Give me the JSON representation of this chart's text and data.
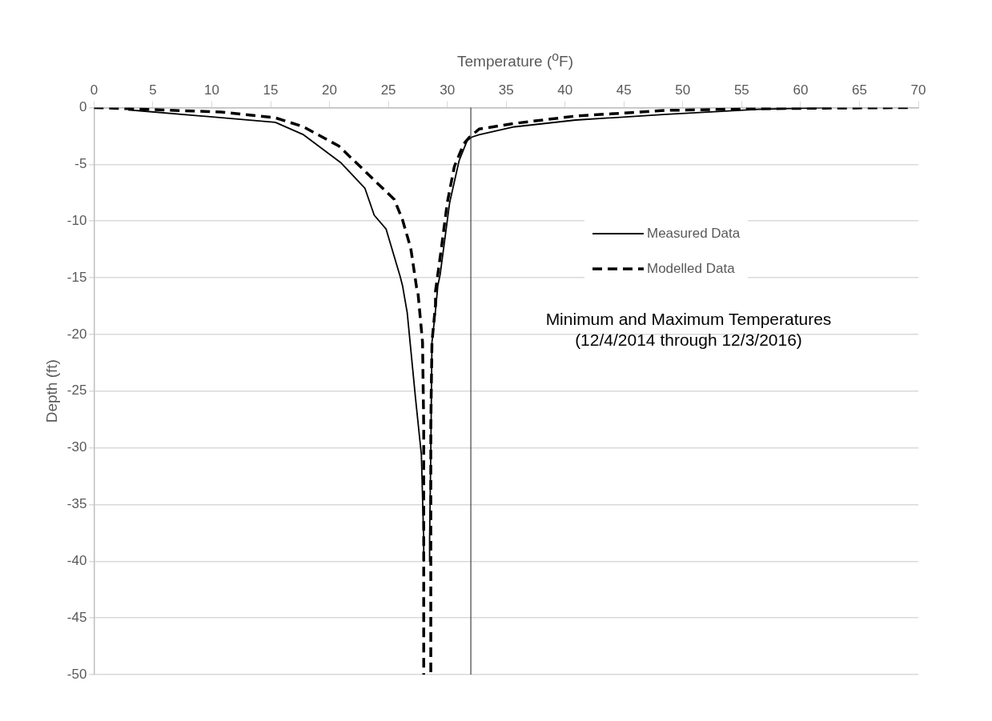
{
  "chart_data": {
    "type": "line",
    "xlabel": "Temperature ($^{o}$F)",
    "ylabel": "Depth (ft)",
    "xlim": [
      0,
      70
    ],
    "xticks": [
      0,
      5,
      10,
      15,
      20,
      25,
      30,
      35,
      40,
      45,
      50,
      55,
      60,
      65,
      70
    ],
    "ylim": [
      -50,
      0
    ],
    "yticks": [
      -50,
      -45,
      -40,
      -35,
      -30,
      -25,
      -20,
      -15,
      -10,
      -5,
      0
    ],
    "grid": "y",
    "legend": "right",
    "marker": "none",
    "ref_lines": [
      {
        "axis": "x",
        "value": 32,
        "color": "#404040"
      }
    ],
    "annotations": [
      "Minimum and Maximum Temperatures\n(12/4/2014 through 12/3/2016)"
    ],
    "series": [
      {
        "name": "Measured Data",
        "color": "#000000",
        "line_style": "solid",
        "x": [
          2.9,
          15.4,
          17.8,
          21.0,
          23.0,
          23.8,
          24.8,
          26.0,
          26.2,
          26.6,
          27.3,
          27.8,
          28.0,
          28.0
        ],
        "values": [
          -0.2,
          -1.3,
          -2.4,
          -4.9,
          -7.1,
          -9.5,
          -10.7,
          -14.9,
          -15.7,
          -18.1,
          -25.6,
          -30.6,
          -38.1,
          -40
        ]
      },
      {
        "color": "#000000",
        "line_style": "solid",
        "x": [
          62.6,
          56.4,
          48.6,
          40.9,
          35.7,
          32.7,
          32.1,
          31.7,
          31.5,
          31.0,
          30.2,
          29.4,
          29.2,
          29.0,
          28.7,
          28.6,
          28.5,
          28.5
        ],
        "values": [
          0,
          -0.15,
          -0.6,
          -1.1,
          -1.7,
          -2.4,
          -2.6,
          -2.9,
          -3.4,
          -4.7,
          -8.4,
          -14.7,
          -15.7,
          -17.9,
          -20.7,
          -30.6,
          -38,
          -40
        ]
      },
      {
        "name": "Modelled Data",
        "color": "#000000",
        "line_style": "dashed",
        "x": [
          0,
          2.9,
          10.8,
          15.4,
          17.8,
          20.8,
          23.1,
          25.5,
          26.2,
          26.9,
          27.4,
          27.5,
          27.9,
          28.0,
          28.0
        ],
        "values": [
          0,
          -0.1,
          -0.4,
          -0.9,
          -1.7,
          -3.4,
          -5.7,
          -8.1,
          -9.9,
          -12.4,
          -15.9,
          -16.2,
          -20.7,
          -28.1,
          -50
        ]
      },
      {
        "color": "#000000",
        "line_style": "dashed",
        "x": [
          69.1,
          56.4,
          48.6,
          40.9,
          35.7,
          32.7,
          31.9,
          31.4,
          30.6,
          30.0,
          29.5,
          29.0,
          29.0,
          28.7,
          28.6,
          28.6
        ],
        "values": [
          0,
          -0.1,
          -0.25,
          -0.75,
          -1.4,
          -1.9,
          -2.6,
          -3.2,
          -5.2,
          -8.4,
          -12.4,
          -16.2,
          -17.4,
          -20.7,
          -28.1,
          -50
        ]
      }
    ]
  }
}
